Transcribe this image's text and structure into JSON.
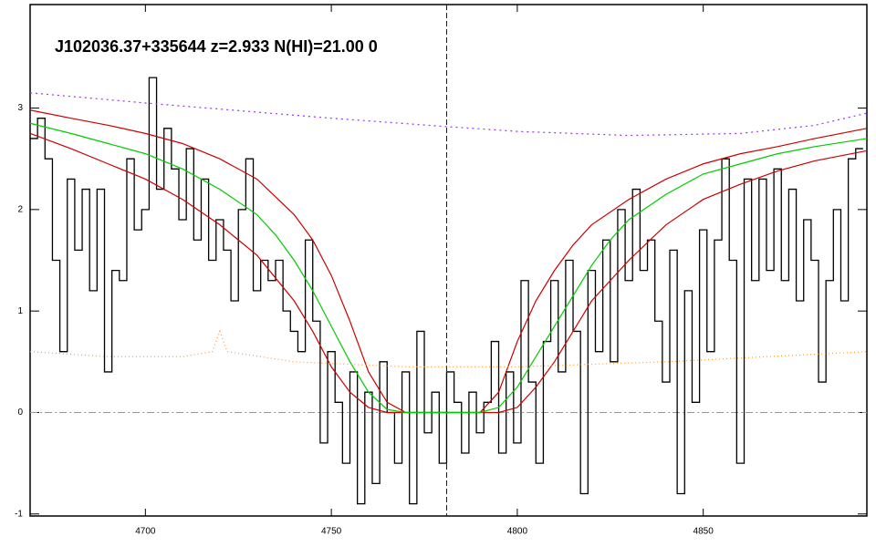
{
  "chart_data": {
    "type": "line",
    "title": "J102036.37+335644 z=2.933 N(HI)=21.00 0",
    "xlim": [
      4669,
      4894
    ],
    "ylim": [
      -1.02,
      4.02
    ],
    "xticks": [
      4700,
      4750,
      4800,
      4850
    ],
    "yticks": [
      -1,
      0,
      1,
      2,
      3
    ],
    "hline": 0,
    "vline": 4781,
    "series": [
      {
        "color": "#000000",
        "style": "step",
        "x": [
          4670,
          4672,
          4674,
          4676,
          4678,
          4680,
          4682,
          4684,
          4686,
          4688,
          4690,
          4692,
          4694,
          4696,
          4698,
          4700,
          4702,
          4704,
          4706,
          4708,
          4710,
          4712,
          4714,
          4716,
          4718,
          4720,
          4722,
          4724,
          4726,
          4728,
          4730,
          4732,
          4734,
          4736,
          4738,
          4740,
          4742,
          4744,
          4746,
          4748,
          4750,
          4752,
          4754,
          4756,
          4758,
          4760,
          4762,
          4764,
          4766,
          4768,
          4770,
          4772,
          4774,
          4776,
          4778,
          4780,
          4782,
          4784,
          4786,
          4788,
          4790,
          4792,
          4794,
          4796,
          4798,
          4800,
          4802,
          4804,
          4806,
          4808,
          4810,
          4812,
          4814,
          4816,
          4818,
          4820,
          4822,
          4824,
          4826,
          4828,
          4830,
          4832,
          4834,
          4836,
          4838,
          4840,
          4842,
          4844,
          4846,
          4848,
          4850,
          4852,
          4854,
          4856,
          4858,
          4860,
          4862,
          4864,
          4866,
          4868,
          4870,
          4872,
          4874,
          4876,
          4878,
          4880,
          4882,
          4884,
          4886,
          4888,
          4890,
          4892
        ],
        "values": [
          2.7,
          2.9,
          2.5,
          1.5,
          0.6,
          2.3,
          1.6,
          2.2,
          1.2,
          2.2,
          0.4,
          1.4,
          1.3,
          2.5,
          1.8,
          2.0,
          3.3,
          2.2,
          2.8,
          2.4,
          1.9,
          2.6,
          1.7,
          2.3,
          1.5,
          1.9,
          1.6,
          1.1,
          2.0,
          2.5,
          1.2,
          1.5,
          1.3,
          1.5,
          1.0,
          0.8,
          0.6,
          1.7,
          0.9,
          -0.3,
          0.6,
          0.1,
          -0.5,
          0.4,
          -0.9,
          0.2,
          -0.7,
          0.5,
          0.0,
          -0.5,
          0.4,
          -0.9,
          0.8,
          -0.2,
          0.2,
          -0.5,
          0.4,
          0.1,
          -0.4,
          0.2,
          -0.2,
          0.1,
          0.7,
          -0.4,
          0.4,
          -0.3,
          1.3,
          0.3,
          -0.5,
          0.7,
          1.3,
          0.4,
          1.5,
          0.8,
          -0.8,
          1.4,
          0.6,
          1.7,
          0.5,
          2.0,
          1.3,
          2.2,
          1.4,
          1.7,
          0.9,
          0.3,
          1.6,
          -0.8,
          1.2,
          0.1,
          1.8,
          0.6,
          1.7,
          2.5,
          1.5,
          -0.5,
          2.3,
          1.3,
          2.3,
          1.4,
          2.4,
          1.3,
          2.2,
          1.1,
          1.9,
          1.5,
          0.3,
          1.3,
          2.0,
          1.1,
          2.5,
          2.6
        ]
      },
      {
        "color": "#cc0000",
        "style": "solid",
        "x": [
          4669,
          4680,
          4690,
          4700,
          4710,
          4720,
          4730,
          4740,
          4745,
          4750,
          4755,
          4760,
          4765,
          4770,
          4790,
          4795,
          4800,
          4805,
          4810,
          4815,
          4820,
          4830,
          4840,
          4850,
          4860,
          4870,
          4880,
          4894
        ],
        "values": [
          2.98,
          2.9,
          2.83,
          2.75,
          2.65,
          2.5,
          2.3,
          1.95,
          1.7,
          1.35,
          0.9,
          0.4,
          0.1,
          0,
          0,
          0.2,
          0.7,
          1.1,
          1.4,
          1.65,
          1.85,
          2.1,
          2.3,
          2.45,
          2.55,
          2.62,
          2.7,
          2.8
        ]
      },
      {
        "color": "#cc0000",
        "style": "solid",
        "x": [
          4669,
          4680,
          4690,
          4700,
          4710,
          4720,
          4730,
          4740,
          4745,
          4750,
          4755,
          4760,
          4765,
          4795,
          4800,
          4805,
          4810,
          4815,
          4820,
          4830,
          4840,
          4850,
          4860,
          4870,
          4880,
          4894
        ],
        "values": [
          2.75,
          2.6,
          2.45,
          2.3,
          2.1,
          1.85,
          1.55,
          1.1,
          0.8,
          0.45,
          0.2,
          0.05,
          0,
          0,
          0.05,
          0.25,
          0.5,
          0.8,
          1.1,
          1.5,
          1.85,
          2.1,
          2.25,
          2.38,
          2.48,
          2.58
        ]
      },
      {
        "color": "#00cc00",
        "style": "solid",
        "x": [
          4669,
          4680,
          4690,
          4700,
          4710,
          4720,
          4730,
          4735,
          4740,
          4745,
          4750,
          4755,
          4760,
          4765,
          4770,
          4790,
          4795,
          4800,
          4805,
          4810,
          4815,
          4820,
          4825,
          4830,
          4840,
          4850,
          4860,
          4870,
          4880,
          4894
        ],
        "values": [
          2.85,
          2.75,
          2.65,
          2.55,
          2.4,
          2.2,
          1.95,
          1.75,
          1.5,
          1.2,
          0.85,
          0.5,
          0.2,
          0.03,
          0,
          0,
          0.05,
          0.25,
          0.55,
          0.85,
          1.15,
          1.45,
          1.7,
          1.9,
          2.15,
          2.35,
          2.45,
          2.55,
          2.62,
          2.7
        ]
      },
      {
        "color": "#9933ff",
        "style": "dotted",
        "x": [
          4669,
          4700,
          4750,
          4780,
          4800,
          4830,
          4860,
          4880,
          4894
        ],
        "values": [
          3.15,
          3.05,
          2.9,
          2.82,
          2.77,
          2.73,
          2.75,
          2.83,
          2.95
        ]
      },
      {
        "color": "#ff9933",
        "style": "fine",
        "x": [
          4669,
          4690,
          4710,
          4718,
          4720,
          4722,
          4740,
          4770,
          4800,
          4840,
          4894
        ],
        "values": [
          0.6,
          0.55,
          0.55,
          0.6,
          0.8,
          0.6,
          0.5,
          0.45,
          0.45,
          0.5,
          0.6
        ]
      }
    ]
  }
}
